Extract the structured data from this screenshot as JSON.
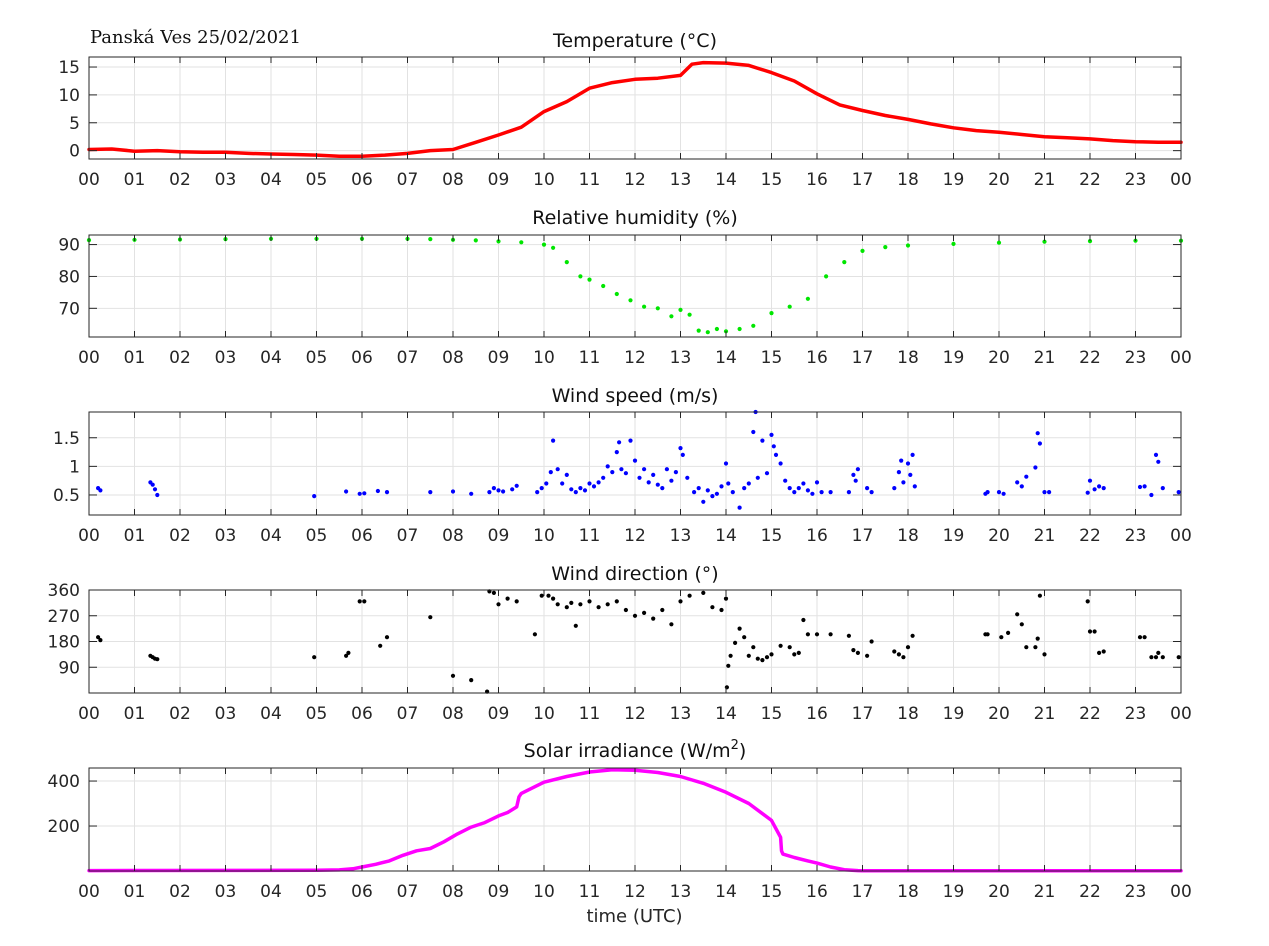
{
  "header": {
    "station_date": "Panská Ves 25/02/2021"
  },
  "x_axis": {
    "label": "time (UTC)",
    "ticks": [
      "00",
      "01",
      "02",
      "03",
      "04",
      "05",
      "06",
      "07",
      "08",
      "09",
      "10",
      "11",
      "12",
      "13",
      "14",
      "15",
      "16",
      "17",
      "18",
      "19",
      "20",
      "21",
      "22",
      "23",
      "00"
    ]
  },
  "chart_data": [
    {
      "id": "temperature",
      "type": "line",
      "title": "Temperature (°C)",
      "title_sup": "",
      "title_tail": "",
      "color": "#ff0000",
      "grid": true,
      "xlim": [
        0,
        24
      ],
      "ylim": [
        -1.5,
        16.8
      ],
      "yticks": [
        0,
        5,
        10,
        15
      ],
      "ytick_labels": [
        "0",
        "5",
        "10",
        "15"
      ],
      "series": [
        {
          "x": [
            0,
            0.5,
            1,
            1.5,
            2,
            2.5,
            3,
            3.5,
            4,
            4.5,
            5,
            5.5,
            6,
            6.5,
            7,
            7.5,
            8,
            8.5,
            9,
            9.5,
            10,
            10.5,
            11,
            11.5,
            12,
            12.5,
            13,
            13.25,
            13.5,
            14,
            14.5,
            15,
            15.5,
            16,
            16.5,
            17,
            17.5,
            18,
            18.5,
            19,
            19.5,
            20,
            20.5,
            21,
            21.5,
            22,
            22.5,
            23,
            23.5,
            24
          ],
          "y": [
            0.2,
            0.3,
            -0.1,
            0.0,
            -0.2,
            -0.3,
            -0.3,
            -0.5,
            -0.6,
            -0.7,
            -0.8,
            -1.0,
            -1.0,
            -0.8,
            -0.5,
            0.0,
            0.2,
            1.5,
            2.8,
            4.2,
            7.0,
            8.8,
            11.2,
            12.2,
            12.8,
            13.0,
            13.5,
            15.5,
            15.8,
            15.7,
            15.3,
            14.0,
            12.5,
            10.2,
            8.2,
            7.2,
            6.3,
            5.6,
            4.8,
            4.1,
            3.6,
            3.3,
            2.9,
            2.5,
            2.3,
            2.1,
            1.8,
            1.6,
            1.5,
            1.5
          ]
        }
      ]
    },
    {
      "id": "humidity",
      "type": "scatter",
      "title": "Relative humidity (%)",
      "title_sup": "",
      "title_tail": "",
      "color": "#00e600",
      "grid": true,
      "xlim": [
        0,
        24
      ],
      "ylim": [
        61,
        93
      ],
      "yticks": [
        70,
        80,
        90
      ],
      "ytick_labels": [
        "70",
        "80",
        "90"
      ],
      "series": [
        {
          "x": [
            0,
            1,
            2,
            3,
            4,
            5,
            6,
            7,
            7.5,
            8,
            8.5,
            9,
            9.5,
            10,
            10.2,
            10.5,
            10.8,
            11,
            11.3,
            11.6,
            11.9,
            12.2,
            12.5,
            12.8,
            13,
            13.2,
            13.4,
            13.6,
            13.8,
            14.0,
            14.3,
            14.6,
            15.0,
            15.4,
            15.8,
            16.2,
            16.6,
            17,
            17.5,
            18,
            19,
            20,
            21,
            22,
            23,
            24
          ],
          "y": [
            91.4,
            91.5,
            91.6,
            91.7,
            91.8,
            91.8,
            91.8,
            91.8,
            91.7,
            91.5,
            91.3,
            91.0,
            90.7,
            90.0,
            89.0,
            84.5,
            80.0,
            79.0,
            77.0,
            74.5,
            72.5,
            70.5,
            70.0,
            67.5,
            69.5,
            68.0,
            63.0,
            62.5,
            63.5,
            62.8,
            63.5,
            64.5,
            68.5,
            70.5,
            73.0,
            80.0,
            84.5,
            88.0,
            89.2,
            89.7,
            90.2,
            90.6,
            90.9,
            91.1,
            91.2,
            91.2
          ]
        }
      ]
    },
    {
      "id": "wind_speed",
      "type": "scatter",
      "title": "Wind speed (m/s)",
      "title_sup": "",
      "title_tail": "",
      "color": "#0000ff",
      "grid": true,
      "xlim": [
        0,
        24
      ],
      "ylim": [
        0.15,
        1.95
      ],
      "yticks": [
        0.5,
        1,
        1.5
      ],
      "ytick_labels": [
        "0.5",
        "1",
        "1.5"
      ],
      "series": [
        {
          "x": [
            0.2,
            0.25,
            1.35,
            1.4,
            1.45,
            1.5,
            4.95,
            5.65,
            5.95,
            6.05,
            6.35,
            6.55,
            7.5,
            8.0,
            8.4,
            8.8,
            8.9,
            9.0,
            9.1,
            9.3,
            9.4,
            9.85,
            9.95,
            10.05,
            10.15,
            10.2,
            10.3,
            10.4,
            10.5,
            10.6,
            10.7,
            10.8,
            10.9,
            11.0,
            11.1,
            11.2,
            11.3,
            11.4,
            11.5,
            11.6,
            11.65,
            11.7,
            11.8,
            11.9,
            12.0,
            12.1,
            12.2,
            12.3,
            12.4,
            12.5,
            12.6,
            12.7,
            12.8,
            12.9,
            13.0,
            13.05,
            13.15,
            13.3,
            13.4,
            13.5,
            13.6,
            13.7,
            13.8,
            13.9,
            14.0,
            14.05,
            14.15,
            14.3,
            14.4,
            14.5,
            14.6,
            14.65,
            14.7,
            14.8,
            14.9,
            15.0,
            15.05,
            15.1,
            15.2,
            15.3,
            15.4,
            15.5,
            15.6,
            15.7,
            15.8,
            15.9,
            16.0,
            16.1,
            16.3,
            16.7,
            16.8,
            16.85,
            16.9,
            17.1,
            17.2,
            17.7,
            17.8,
            17.85,
            17.9,
            18.0,
            18.05,
            18.1,
            18.15,
            19.7,
            19.75,
            20.0,
            20.1,
            20.4,
            20.5,
            20.6,
            20.8,
            20.85,
            20.9,
            21.0,
            21.1,
            21.95,
            22.0,
            22.1,
            22.2,
            22.3,
            23.1,
            23.2,
            23.35,
            23.45,
            23.5,
            23.6,
            23.95
          ],
          "y": [
            0.62,
            0.58,
            0.72,
            0.68,
            0.6,
            0.5,
            0.48,
            0.56,
            0.52,
            0.53,
            0.57,
            0.55,
            0.55,
            0.56,
            0.52,
            0.55,
            0.62,
            0.58,
            0.56,
            0.6,
            0.66,
            0.55,
            0.62,
            0.7,
            0.9,
            1.45,
            0.95,
            0.7,
            0.85,
            0.6,
            0.55,
            0.62,
            0.58,
            0.7,
            0.65,
            0.72,
            0.8,
            1.0,
            0.9,
            1.25,
            1.42,
            0.95,
            0.88,
            1.45,
            1.1,
            0.8,
            0.95,
            0.72,
            0.85,
            0.68,
            0.62,
            0.95,
            0.75,
            0.9,
            1.32,
            1.2,
            0.8,
            0.55,
            0.62,
            0.38,
            0.58,
            0.48,
            0.52,
            0.65,
            1.05,
            0.7,
            0.55,
            0.28,
            0.62,
            0.7,
            1.6,
            1.95,
            0.8,
            1.45,
            0.88,
            1.55,
            1.35,
            1.2,
            1.05,
            0.75,
            0.62,
            0.55,
            0.62,
            0.7,
            0.58,
            0.52,
            0.72,
            0.55,
            0.55,
            0.55,
            0.85,
            0.75,
            0.95,
            0.62,
            0.55,
            0.62,
            0.9,
            1.1,
            0.72,
            1.05,
            0.85,
            1.2,
            0.65,
            0.52,
            0.55,
            0.55,
            0.52,
            0.72,
            0.65,
            0.82,
            0.98,
            1.58,
            1.4,
            0.55,
            0.55,
            0.54,
            0.75,
            0.6,
            0.65,
            0.62,
            0.64,
            0.65,
            0.5,
            1.2,
            1.08,
            0.62,
            0.55
          ]
        }
      ]
    },
    {
      "id": "wind_direction",
      "type": "scatter",
      "title": "Wind direction (°)",
      "title_sup": "",
      "title_tail": "",
      "color": "#000000",
      "grid": true,
      "xlim": [
        0,
        24
      ],
      "ylim": [
        0,
        360
      ],
      "yticks": [
        90,
        180,
        270,
        360
      ],
      "ytick_labels": [
        "90",
        "180",
        "270",
        "360"
      ],
      "series": [
        {
          "x": [
            0.2,
            0.25,
            1.35,
            1.4,
            1.45,
            1.5,
            4.95,
            5.65,
            5.7,
            5.95,
            6.05,
            6.4,
            6.55,
            7.5,
            8.0,
            8.4,
            8.75,
            8.8,
            8.9,
            9.0,
            9.2,
            9.4,
            9.8,
            9.95,
            10.1,
            10.2,
            10.3,
            10.5,
            10.6,
            10.7,
            10.8,
            11.0,
            11.2,
            11.4,
            11.6,
            11.8,
            12.0,
            12.2,
            12.4,
            12.6,
            12.8,
            13.0,
            13.2,
            13.5,
            13.7,
            13.9,
            14.0,
            14.02,
            14.05,
            14.1,
            14.2,
            14.3,
            14.4,
            14.5,
            14.6,
            14.7,
            14.8,
            14.9,
            15.0,
            15.2,
            15.4,
            15.5,
            15.6,
            15.7,
            15.8,
            16.0,
            16.3,
            16.7,
            16.8,
            16.9,
            17.1,
            17.2,
            17.7,
            17.8,
            17.9,
            18.0,
            18.1,
            19.7,
            19.75,
            20.05,
            20.2,
            20.4,
            20.5,
            20.6,
            20.8,
            20.85,
            20.9,
            21.0,
            21.95,
            22.0,
            22.1,
            22.2,
            22.3,
            23.1,
            23.2,
            23.35,
            23.45,
            23.5,
            23.6,
            23.95
          ],
          "y": [
            195,
            185,
            130,
            125,
            120,
            118,
            125,
            130,
            140,
            320,
            320,
            165,
            195,
            265,
            60,
            45,
            5,
            355,
            350,
            310,
            330,
            320,
            205,
            340,
            340,
            330,
            310,
            300,
            315,
            235,
            310,
            320,
            300,
            310,
            320,
            290,
            270,
            280,
            260,
            290,
            240,
            320,
            340,
            350,
            300,
            290,
            330,
            20,
            95,
            130,
            175,
            225,
            195,
            130,
            160,
            120,
            115,
            125,
            135,
            165,
            160,
            135,
            140,
            255,
            205,
            205,
            205,
            200,
            150,
            140,
            130,
            180,
            145,
            135,
            125,
            160,
            200,
            205,
            205,
            195,
            210,
            275,
            240,
            160,
            160,
            190,
            340,
            135,
            320,
            215,
            215,
            140,
            145,
            195,
            195,
            125,
            125,
            140,
            125,
            125
          ]
        }
      ]
    },
    {
      "id": "solar",
      "type": "line",
      "title": "Solar irradiance (W/m",
      "title_sup": "2",
      "title_tail": ")",
      "color": "#ff00ff",
      "grid": true,
      "xlim": [
        0,
        24
      ],
      "ylim": [
        0,
        458
      ],
      "yticks": [
        200,
        400
      ],
      "ytick_labels": [
        "200",
        "400"
      ],
      "series": [
        {
          "x": [
            0,
            5.0,
            5.5,
            5.8,
            6.0,
            6.3,
            6.6,
            6.9,
            7.2,
            7.5,
            7.8,
            8.1,
            8.4,
            8.7,
            9.0,
            9.2,
            9.4,
            9.45,
            9.5,
            9.8,
            10.0,
            10.5,
            11.0,
            11.5,
            12.0,
            12.5,
            13.0,
            13.5,
            14.0,
            14.5,
            15.0,
            15.2,
            15.22,
            15.25,
            15.5,
            15.8,
            16.0,
            16.3,
            16.6,
            16.9,
            17.0,
            24
          ],
          "y": [
            2,
            3,
            5,
            10,
            18,
            30,
            45,
            70,
            90,
            100,
            130,
            165,
            195,
            215,
            245,
            260,
            285,
            330,
            345,
            375,
            395,
            420,
            440,
            450,
            448,
            438,
            420,
            390,
            350,
            300,
            225,
            150,
            90,
            75,
            60,
            45,
            35,
            18,
            6,
            2,
            1,
            1
          ]
        }
      ]
    }
  ]
}
